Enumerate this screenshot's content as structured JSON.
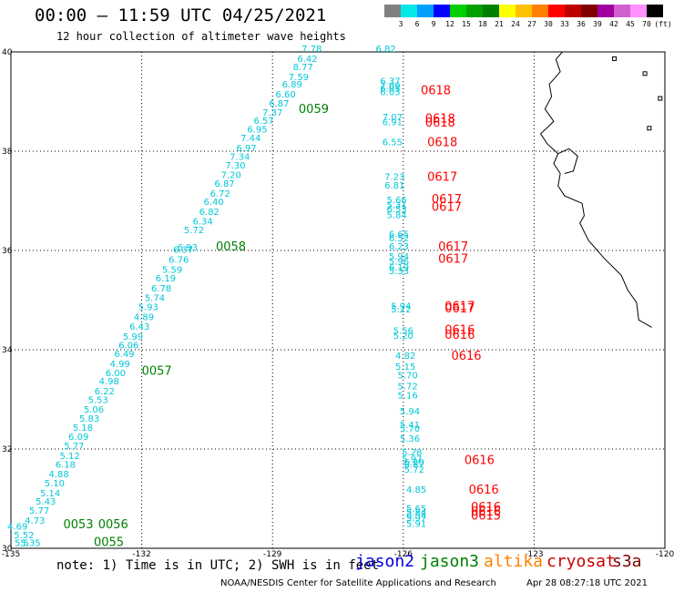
{
  "header": {
    "title": "00:00 – 11:59 UTC 04/25/2021",
    "subtitle": "12 hour collection of altimeter wave heights"
  },
  "legend": {
    "colors": [
      "#808080",
      "#00e8e8",
      "#00a0ff",
      "#0000ff",
      "#00d000",
      "#00a000",
      "#008000",
      "#ffff00",
      "#ffc000",
      "#ff8000",
      "#ff0000",
      "#c00000",
      "#800000",
      "#a000a0",
      "#d060d0",
      "#ff90ff",
      "#000000"
    ],
    "ticks": [
      "3",
      "6",
      "9",
      "12",
      "15",
      "18",
      "21",
      "24",
      "27",
      "30",
      "33",
      "36",
      "39",
      "42",
      "45",
      "70",
      "(ft)"
    ]
  },
  "axes": {
    "lon_ticks": [
      "-135",
      "-132",
      "-129",
      "-126",
      "-123",
      "-120"
    ],
    "lat_ticks": [
      "40",
      "38",
      "36",
      "34",
      "32",
      "30"
    ],
    "lon_range": [
      -135,
      -120
    ],
    "lat_range": [
      30,
      40
    ]
  },
  "tracks": [
    {
      "satellite": "jason3",
      "color": "#00aaaa",
      "label_color": "#008000",
      "time_labels": [
        {
          "text": "0059",
          "lon": -128.4,
          "lat": 38.77
        },
        {
          "text": "0058",
          "lon": -130.3,
          "lat": 36.0
        },
        {
          "text": "0057",
          "lon": -132.0,
          "lat": 33.5
        },
        {
          "text": "0056",
          "lon": -133.0,
          "lat": 30.4
        },
        {
          "text": "0053",
          "lon": -133.8,
          "lat": 30.4
        },
        {
          "text": "0055",
          "lon": -133.1,
          "lat": 30.05
        }
      ],
      "values": [
        {
          "v": "7.78",
          "lon": -128.1,
          "lat": 40.0
        },
        {
          "v": "6.42",
          "lon": -128.2,
          "lat": 39.8
        },
        {
          "v": "8.77",
          "lon": -128.3,
          "lat": 39.63
        },
        {
          "v": "7.59",
          "lon": -128.4,
          "lat": 39.43
        },
        {
          "v": "6.89",
          "lon": -128.55,
          "lat": 39.28
        },
        {
          "v": "6.60",
          "lon": -128.7,
          "lat": 39.08
        },
        {
          "v": "6.87",
          "lon": -128.85,
          "lat": 38.9
        },
        {
          "v": "7.37",
          "lon": -129.0,
          "lat": 38.72
        },
        {
          "v": "6.57",
          "lon": -129.2,
          "lat": 38.55
        },
        {
          "v": "6.95",
          "lon": -129.35,
          "lat": 38.38
        },
        {
          "v": "7.44",
          "lon": -129.5,
          "lat": 38.2
        },
        {
          "v": "6.97",
          "lon": -129.6,
          "lat": 38.0
        },
        {
          "v": "7.34",
          "lon": -129.75,
          "lat": 37.83
        },
        {
          "v": "7.30",
          "lon": -129.85,
          "lat": 37.65
        },
        {
          "v": "7.20",
          "lon": -129.95,
          "lat": 37.46
        },
        {
          "v": "6.87",
          "lon": -130.1,
          "lat": 37.28
        },
        {
          "v": "6.72",
          "lon": -130.2,
          "lat": 37.08
        },
        {
          "v": "6.40",
          "lon": -130.35,
          "lat": 36.92
        },
        {
          "v": "6.82",
          "lon": -130.45,
          "lat": 36.72
        },
        {
          "v": "6.34",
          "lon": -130.6,
          "lat": 36.52
        },
        {
          "v": "5.72",
          "lon": -130.8,
          "lat": 36.35
        },
        {
          "v": "6.93",
          "lon": -130.95,
          "lat": 36.0
        },
        {
          "v": "6.37",
          "lon": -131.05,
          "lat": 35.95
        },
        {
          "v": "6.76",
          "lon": -131.15,
          "lat": 35.75
        },
        {
          "v": "5.59",
          "lon": -131.3,
          "lat": 35.55
        },
        {
          "v": "6.19",
          "lon": -131.45,
          "lat": 35.38
        },
        {
          "v": "6.78",
          "lon": -131.55,
          "lat": 35.17
        },
        {
          "v": "5.74",
          "lon": -131.7,
          "lat": 34.98
        },
        {
          "v": "5.93",
          "lon": -131.85,
          "lat": 34.8
        },
        {
          "v": "4.89",
          "lon": -131.95,
          "lat": 34.6
        },
        {
          "v": "6.43",
          "lon": -132.05,
          "lat": 34.4
        },
        {
          "v": "5.99",
          "lon": -132.2,
          "lat": 34.2
        },
        {
          "v": "6.06",
          "lon": -132.3,
          "lat": 34.03
        },
        {
          "v": "6.49",
          "lon": -132.4,
          "lat": 33.85
        },
        {
          "v": "4.99",
          "lon": -132.5,
          "lat": 33.65
        },
        {
          "v": "6.00",
          "lon": -132.6,
          "lat": 33.47
        },
        {
          "v": "4.98",
          "lon": -132.75,
          "lat": 33.3
        },
        {
          "v": "6.22",
          "lon": -132.85,
          "lat": 33.1
        },
        {
          "v": "5.53",
          "lon": -133.0,
          "lat": 32.93
        },
        {
          "v": "5.06",
          "lon": -133.1,
          "lat": 32.73
        },
        {
          "v": "5.83",
          "lon": -133.2,
          "lat": 32.55
        },
        {
          "v": "5.18",
          "lon": -133.35,
          "lat": 32.37
        },
        {
          "v": "6.09",
          "lon": -133.45,
          "lat": 32.18
        },
        {
          "v": "5.77",
          "lon": -133.55,
          "lat": 32.0
        },
        {
          "v": "5.12",
          "lon": -133.65,
          "lat": 31.8
        },
        {
          "v": "6.18",
          "lon": -133.75,
          "lat": 31.62
        },
        {
          "v": "4.88",
          "lon": -133.9,
          "lat": 31.43
        },
        {
          "v": "5.10",
          "lon": -134.0,
          "lat": 31.25
        },
        {
          "v": "5.14",
          "lon": -134.1,
          "lat": 31.05
        },
        {
          "v": "5.43",
          "lon": -134.2,
          "lat": 30.88
        },
        {
          "v": "5.77",
          "lon": -134.35,
          "lat": 30.7
        },
        {
          "v": "4.73",
          "lon": -134.45,
          "lat": 30.5
        },
        {
          "v": "4.69",
          "lon": -134.85,
          "lat": 30.38
        },
        {
          "v": "5.52",
          "lon": -134.7,
          "lat": 30.2
        },
        {
          "v": "5.35",
          "lon": -134.55,
          "lat": 30.05
        },
        {
          "v": "5.5",
          "lon": -134.75,
          "lat": 30.05
        }
      ]
    },
    {
      "satellite": "cryosat",
      "color": "#00aaaa",
      "label_color": "#ff0000",
      "time_labels": [
        {
          "text": "0618",
          "lon": -125.6,
          "lat": 39.15
        },
        {
          "text": "0618",
          "lon": -125.5,
          "lat": 38.58
        },
        {
          "text": "0618",
          "lon": -125.5,
          "lat": 38.5
        },
        {
          "text": "0618",
          "lon": -125.45,
          "lat": 38.1
        },
        {
          "text": "0617",
          "lon": -125.45,
          "lat": 37.4
        },
        {
          "text": "0617",
          "lon": -125.35,
          "lat": 36.95
        },
        {
          "text": "0617",
          "lon": -125.35,
          "lat": 36.8
        },
        {
          "text": "0617",
          "lon": -125.2,
          "lat": 36.0
        },
        {
          "text": "0617",
          "lon": -125.2,
          "lat": 35.75
        },
        {
          "text": "0617",
          "lon": -125.05,
          "lat": 34.8
        },
        {
          "text": "0617",
          "lon": -125.05,
          "lat": 34.75
        },
        {
          "text": "0616",
          "lon": -125.05,
          "lat": 34.32
        },
        {
          "text": "0616",
          "lon": -125.05,
          "lat": 34.22
        },
        {
          "text": "0616",
          "lon": -124.9,
          "lat": 33.8
        },
        {
          "text": "0616",
          "lon": -124.6,
          "lat": 31.7
        },
        {
          "text": "0616",
          "lon": -124.5,
          "lat": 31.1
        },
        {
          "text": "0616",
          "lon": -124.45,
          "lat": 30.75
        },
        {
          "text": "0615",
          "lon": -124.45,
          "lat": 30.58
        },
        {
          "text": "0616",
          "lon": -124.45,
          "lat": 30.66
        }
      ],
      "values": [
        {
          "v": "6.82",
          "lon": -126.4,
          "lat": 40.0
        },
        {
          "v": "6.37",
          "lon": -126.3,
          "lat": 39.35
        },
        {
          "v": "7.09",
          "lon": -126.3,
          "lat": 39.26
        },
        {
          "v": "6.05",
          "lon": -126.3,
          "lat": 39.2
        },
        {
          "v": "6.03",
          "lon": -126.3,
          "lat": 39.13
        },
        {
          "v": "7.07",
          "lon": -126.25,
          "lat": 38.62
        },
        {
          "v": "6.91",
          "lon": -126.25,
          "lat": 38.52
        },
        {
          "v": "6.55",
          "lon": -126.25,
          "lat": 38.12
        },
        {
          "v": "7.23",
          "lon": -126.2,
          "lat": 37.42
        },
        {
          "v": "6.81",
          "lon": -126.2,
          "lat": 37.25
        },
        {
          "v": "5.66",
          "lon": -126.15,
          "lat": 36.95
        },
        {
          "v": "5.31",
          "lon": -126.15,
          "lat": 36.85
        },
        {
          "v": "6.53",
          "lon": -126.15,
          "lat": 36.77
        },
        {
          "v": "5.84",
          "lon": -126.15,
          "lat": 36.65
        },
        {
          "v": "6.65",
          "lon": -126.1,
          "lat": 36.27
        },
        {
          "v": "6.52",
          "lon": -126.1,
          "lat": 36.18
        },
        {
          "v": "6.23",
          "lon": -126.1,
          "lat": 36.02
        },
        {
          "v": "5.94",
          "lon": -126.1,
          "lat": 35.82
        },
        {
          "v": "5.96",
          "lon": -126.1,
          "lat": 35.72
        },
        {
          "v": "6.19",
          "lon": -126.1,
          "lat": 35.6
        },
        {
          "v": "5.33",
          "lon": -126.1,
          "lat": 35.52
        },
        {
          "v": "5.94",
          "lon": -126.05,
          "lat": 34.82
        },
        {
          "v": "5.22",
          "lon": -126.05,
          "lat": 34.75
        },
        {
          "v": "5.56",
          "lon": -126.0,
          "lat": 34.32
        },
        {
          "v": "5.20",
          "lon": -126.0,
          "lat": 34.22
        },
        {
          "v": "4.82",
          "lon": -125.95,
          "lat": 33.82
        },
        {
          "v": "5.15",
          "lon": -125.95,
          "lat": 33.6
        },
        {
          "v": "5.70",
          "lon": -125.9,
          "lat": 33.42
        },
        {
          "v": "5.72",
          "lon": -125.9,
          "lat": 33.2
        },
        {
          "v": "5.16",
          "lon": -125.9,
          "lat": 33.02
        },
        {
          "v": "5.94",
          "lon": -125.85,
          "lat": 32.7
        },
        {
          "v": "5.41",
          "lon": -125.85,
          "lat": 32.42
        },
        {
          "v": "5.70",
          "lon": -125.85,
          "lat": 32.35
        },
        {
          "v": "5.36",
          "lon": -125.85,
          "lat": 32.15
        },
        {
          "v": "5.28",
          "lon": -125.8,
          "lat": 31.87
        },
        {
          "v": "5.97",
          "lon": -125.8,
          "lat": 31.73
        },
        {
          "v": "6.20",
          "lon": -125.75,
          "lat": 31.67
        },
        {
          "v": "6.87",
          "lon": -125.75,
          "lat": 31.62
        },
        {
          "v": "5.72",
          "lon": -125.75,
          "lat": 31.52
        },
        {
          "v": "4.85",
          "lon": -125.7,
          "lat": 31.12
        },
        {
          "v": "5.65",
          "lon": -125.7,
          "lat": 30.73
        },
        {
          "v": "5.84",
          "lon": -125.7,
          "lat": 30.66
        },
        {
          "v": "6.54",
          "lon": -125.7,
          "lat": 30.6
        },
        {
          "v": "5.97",
          "lon": -125.7,
          "lat": 30.55
        },
        {
          "v": "5.91",
          "lon": -125.7,
          "lat": 30.43
        }
      ]
    }
  ],
  "footer": {
    "note": "note: 1) Time is in UTC; 2) SWH is in feet",
    "satellites": [
      {
        "name": "jason2",
        "color": "#0000dd"
      },
      {
        "name": "jason3",
        "color": "#008000"
      },
      {
        "name": "altika",
        "color": "#ff8000"
      },
      {
        "name": "cryosat",
        "color": "#cc0000"
      },
      {
        "name": "s3a",
        "color": "#800000"
      }
    ],
    "credit": "NOAA/NESDIS Center for Satellite Applications and Research",
    "timestamp": "Apr 28 08:27:18 UTC 2021"
  }
}
